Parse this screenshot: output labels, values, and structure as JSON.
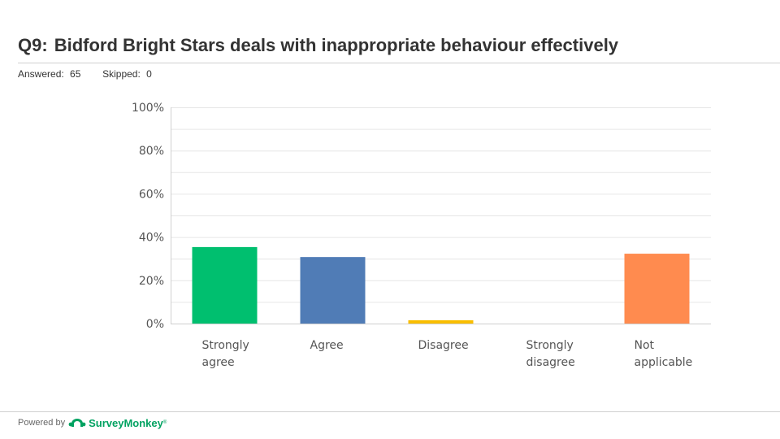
{
  "header": {
    "question_number": "Q9:",
    "question_text": "Bidford Bright Stars deals with inappropriate behaviour effectively"
  },
  "stats": {
    "answered_label": "Answered:",
    "answered_value": "65",
    "skipped_label": "Skipped:",
    "skipped_value": "0"
  },
  "chart_data": {
    "type": "bar",
    "categories": [
      [
        "Strongly",
        "agree"
      ],
      [
        "Agree"
      ],
      [
        "Disagree"
      ],
      [
        "Strongly",
        "disagree"
      ],
      [
        "Not",
        "applicable"
      ]
    ],
    "values": [
      35.38,
      30.77,
      1.54,
      0,
      32.31
    ],
    "colors": [
      "#00bf6f",
      "#507cb6",
      "#f9be00",
      "#6bc8cd",
      "#ff8b4f"
    ],
    "yticks": [
      "0%",
      "20%",
      "40%",
      "60%",
      "80%",
      "100%"
    ],
    "ylim": [
      0,
      100
    ],
    "grid": true
  },
  "footer": {
    "powered_by": "Powered by",
    "brand": "SurveyMonkey",
    "brand_mark": "®"
  }
}
